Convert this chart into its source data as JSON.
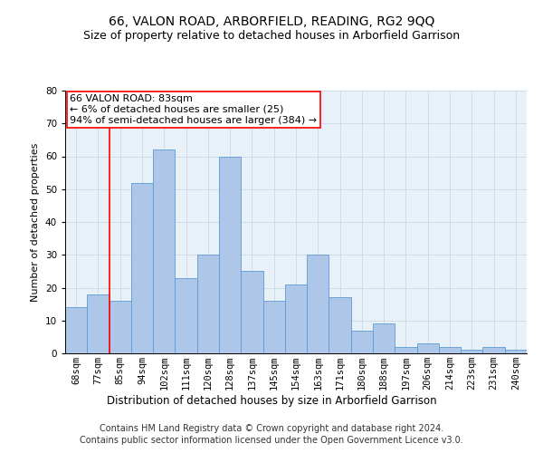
{
  "title": "66, VALON ROAD, ARBORFIELD, READING, RG2 9QQ",
  "subtitle": "Size of property relative to detached houses in Arborfield Garrison",
  "xlabel": "Distribution of detached houses by size in Arborfield Garrison",
  "ylabel": "Number of detached properties",
  "categories": [
    "68sqm",
    "77sqm",
    "85sqm",
    "94sqm",
    "102sqm",
    "111sqm",
    "120sqm",
    "128sqm",
    "137sqm",
    "145sqm",
    "154sqm",
    "163sqm",
    "171sqm",
    "180sqm",
    "188sqm",
    "197sqm",
    "206sqm",
    "214sqm",
    "223sqm",
    "231sqm",
    "240sqm"
  ],
  "values": [
    14,
    18,
    16,
    52,
    62,
    23,
    30,
    60,
    25,
    16,
    21,
    30,
    17,
    7,
    9,
    2,
    3,
    2,
    1,
    2,
    1
  ],
  "bar_color": "#aec6e8",
  "bar_edge_color": "#5b9bd5",
  "bar_width": 1.0,
  "vline_x": 1.5,
  "vline_color": "red",
  "annotation_line1": "66 VALON ROAD: 83sqm",
  "annotation_line2": "← 6% of detached houses are smaller (25)",
  "annotation_line3": "94% of semi-detached houses are larger (384) →",
  "annotation_box_color": "white",
  "annotation_box_edge_color": "red",
  "ylim": [
    0,
    80
  ],
  "yticks": [
    0,
    10,
    20,
    30,
    40,
    50,
    60,
    70,
    80
  ],
  "grid_color": "#c8d8e8",
  "bg_color": "#e8f0f8",
  "footer_line1": "Contains HM Land Registry data © Crown copyright and database right 2024.",
  "footer_line2": "Contains public sector information licensed under the Open Government Licence v3.0.",
  "title_fontsize": 10,
  "subtitle_fontsize": 9,
  "xlabel_fontsize": 8.5,
  "ylabel_fontsize": 8,
  "tick_fontsize": 7.5,
  "annotation_fontsize": 8,
  "footer_fontsize": 7
}
